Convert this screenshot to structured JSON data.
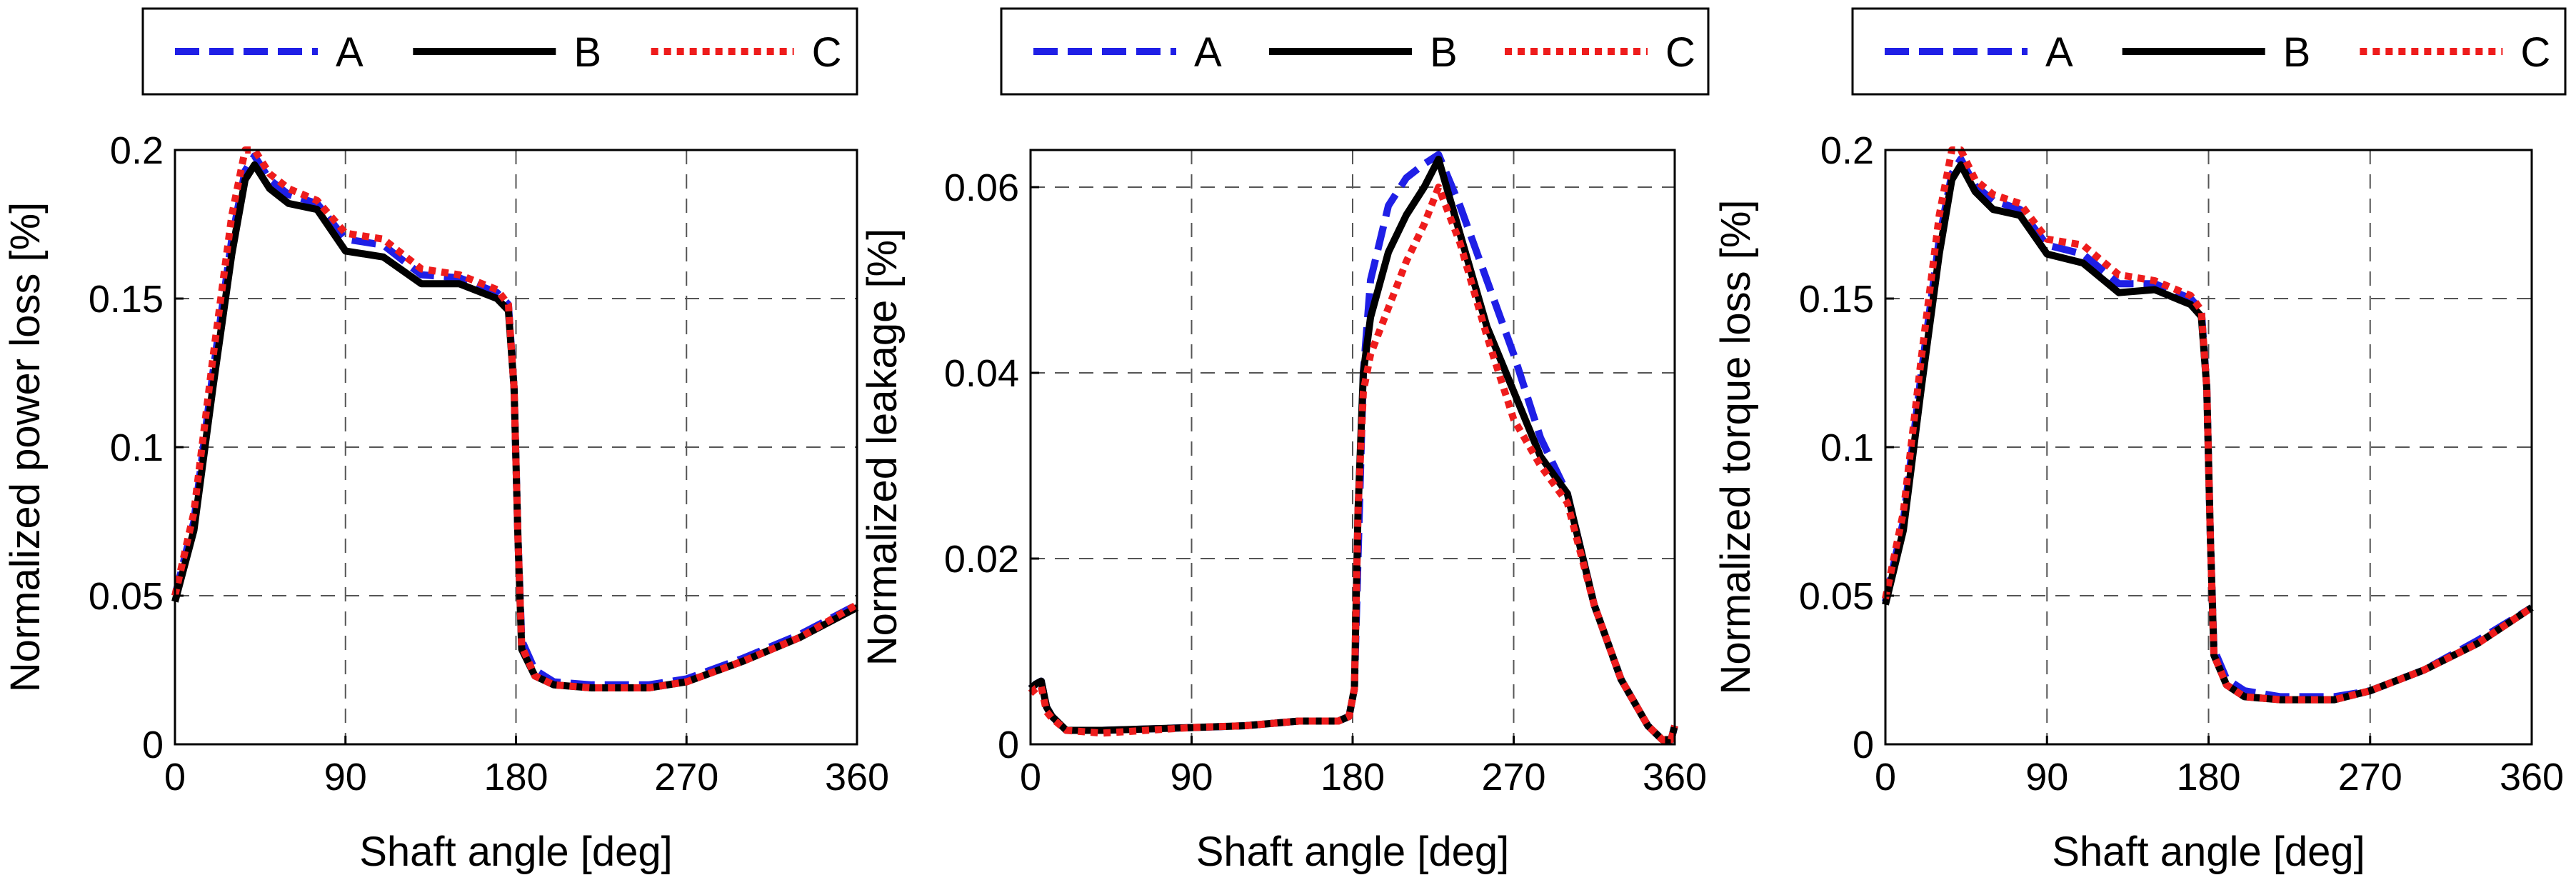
{
  "colors": {
    "A": "#1f1fe6",
    "B": "#000000",
    "C": "#ee1c1c",
    "grid": "#555555"
  },
  "chart_data": [
    {
      "type": "line",
      "xlabel": "Shaft angle [deg]",
      "ylabel": "Normalized power loss [%]",
      "xlim": [
        0,
        360
      ],
      "ylim": [
        0,
        0.2
      ],
      "xticks": [
        0,
        90,
        180,
        270,
        360
      ],
      "xtick_labels": [
        "0",
        "90",
        "180",
        "270",
        "360"
      ],
      "yticks": [
        0,
        0.05,
        0.1,
        0.15,
        0.2
      ],
      "ytick_labels": [
        "0",
        "0.05",
        "0.1",
        "0.15",
        "0.2"
      ],
      "grid": true,
      "legend": "top, outside",
      "series": [
        {
          "name": "A",
          "style": "dashed",
          "x": [
            0,
            10,
            20,
            30,
            37,
            42,
            50,
            60,
            75,
            90,
            110,
            130,
            150,
            170,
            176,
            179,
            181,
            183,
            190,
            200,
            220,
            250,
            270,
            300,
            330,
            360
          ],
          "y": [
            0.05,
            0.075,
            0.125,
            0.17,
            0.193,
            0.198,
            0.19,
            0.185,
            0.182,
            0.17,
            0.168,
            0.158,
            0.157,
            0.152,
            0.148,
            0.12,
            0.07,
            0.035,
            0.025,
            0.021,
            0.02,
            0.02,
            0.022,
            0.029,
            0.037,
            0.047
          ]
        },
        {
          "name": "B",
          "style": "solid",
          "x": [
            0,
            10,
            20,
            30,
            37,
            42,
            50,
            60,
            75,
            90,
            110,
            130,
            150,
            170,
            176,
            179,
            181,
            183,
            190,
            200,
            220,
            250,
            270,
            300,
            330,
            360
          ],
          "y": [
            0.048,
            0.072,
            0.12,
            0.165,
            0.19,
            0.195,
            0.187,
            0.182,
            0.18,
            0.166,
            0.164,
            0.155,
            0.155,
            0.15,
            0.146,
            0.12,
            0.07,
            0.032,
            0.023,
            0.02,
            0.019,
            0.019,
            0.021,
            0.028,
            0.036,
            0.046
          ]
        },
        {
          "name": "C",
          "style": "dotted",
          "x": [
            0,
            10,
            20,
            30,
            37,
            42,
            50,
            60,
            75,
            90,
            110,
            130,
            150,
            170,
            176,
            179,
            181,
            183,
            190,
            200,
            220,
            250,
            270,
            300,
            330,
            360
          ],
          "y": [
            0.05,
            0.078,
            0.13,
            0.178,
            0.2,
            0.2,
            0.192,
            0.187,
            0.183,
            0.172,
            0.17,
            0.16,
            0.158,
            0.153,
            0.148,
            0.12,
            0.07,
            0.033,
            0.023,
            0.02,
            0.019,
            0.019,
            0.021,
            0.028,
            0.036,
            0.047
          ]
        }
      ]
    },
    {
      "type": "line",
      "xlabel": "Shaft angle [deg]",
      "ylabel": "Normalized leakage [%]",
      "xlim": [
        0,
        360
      ],
      "ylim": [
        0,
        0.064
      ],
      "xticks": [
        0,
        90,
        180,
        270,
        360
      ],
      "xtick_labels": [
        "0",
        "90",
        "180",
        "270",
        "360"
      ],
      "yticks": [
        0,
        0.02,
        0.04,
        0.06
      ],
      "ytick_labels": [
        "0",
        "0.02",
        "0.04",
        "0.06"
      ],
      "grid": true,
      "legend": "top, outside",
      "series": [
        {
          "name": "A",
          "style": "dashed",
          "x": [
            0,
            3,
            6,
            9,
            12,
            20,
            40,
            90,
            120,
            150,
            172,
            178,
            181,
            183,
            186,
            190,
            200,
            210,
            220,
            228,
            240,
            255,
            270,
            285,
            300,
            315,
            330,
            345,
            353,
            358,
            360
          ],
          "y": [
            0.006,
            0.0065,
            0.0068,
            0.004,
            0.003,
            0.0015,
            0.0015,
            0.0018,
            0.002,
            0.0025,
            0.0025,
            0.003,
            0.006,
            0.02,
            0.04,
            0.05,
            0.058,
            0.061,
            0.0625,
            0.0635,
            0.058,
            0.05,
            0.042,
            0.033,
            0.027,
            0.015,
            0.007,
            0.002,
            0.0005,
            0.0005,
            0.002
          ]
        },
        {
          "name": "B",
          "style": "solid",
          "x": [
            0,
            3,
            6,
            9,
            12,
            20,
            40,
            90,
            120,
            150,
            172,
            178,
            181,
            183,
            186,
            190,
            200,
            210,
            220,
            228,
            240,
            255,
            270,
            285,
            300,
            315,
            330,
            345,
            353,
            358,
            360
          ],
          "y": [
            0.006,
            0.0065,
            0.0068,
            0.004,
            0.003,
            0.0015,
            0.0015,
            0.0018,
            0.002,
            0.0025,
            0.0025,
            0.003,
            0.006,
            0.025,
            0.04,
            0.046,
            0.053,
            0.057,
            0.06,
            0.063,
            0.055,
            0.045,
            0.038,
            0.031,
            0.027,
            0.015,
            0.007,
            0.002,
            0.0005,
            0.0005,
            0.002
          ]
        },
        {
          "name": "C",
          "style": "dotted",
          "x": [
            0,
            3,
            6,
            9,
            12,
            20,
            40,
            90,
            120,
            150,
            172,
            178,
            181,
            183,
            186,
            190,
            200,
            210,
            220,
            228,
            240,
            255,
            270,
            285,
            300,
            315,
            330,
            345,
            353,
            358,
            360
          ],
          "y": [
            0.0055,
            0.006,
            0.0062,
            0.0035,
            0.0028,
            0.0015,
            0.0012,
            0.0018,
            0.002,
            0.0025,
            0.0025,
            0.003,
            0.006,
            0.025,
            0.038,
            0.042,
            0.047,
            0.052,
            0.056,
            0.06,
            0.054,
            0.044,
            0.035,
            0.03,
            0.026,
            0.015,
            0.007,
            0.002,
            0.0005,
            0.0005,
            0.002
          ]
        }
      ]
    },
    {
      "type": "line",
      "xlabel": "Shaft angle [deg]",
      "ylabel": "Normalized torque loss [%]",
      "xlim": [
        0,
        360
      ],
      "ylim": [
        0,
        0.2
      ],
      "xticks": [
        0,
        90,
        180,
        270,
        360
      ],
      "xtick_labels": [
        "0",
        "90",
        "180",
        "270",
        "360"
      ],
      "yticks": [
        0,
        0.05,
        0.1,
        0.15,
        0.2
      ],
      "ytick_labels": [
        "0",
        "0.05",
        "0.1",
        "0.15",
        "0.2"
      ],
      "grid": true,
      "legend": "top, outside",
      "series": [
        {
          "name": "A",
          "style": "dashed",
          "x": [
            0,
            10,
            20,
            30,
            37,
            42,
            50,
            60,
            75,
            90,
            110,
            130,
            150,
            170,
            176,
            179,
            181,
            183,
            190,
            200,
            220,
            250,
            270,
            300,
            330,
            360
          ],
          "y": [
            0.048,
            0.075,
            0.125,
            0.17,
            0.192,
            0.197,
            0.188,
            0.183,
            0.18,
            0.168,
            0.165,
            0.155,
            0.155,
            0.15,
            0.146,
            0.12,
            0.07,
            0.032,
            0.022,
            0.018,
            0.016,
            0.016,
            0.018,
            0.025,
            0.035,
            0.046
          ]
        },
        {
          "name": "B",
          "style": "solid",
          "x": [
            0,
            10,
            20,
            30,
            37,
            42,
            50,
            60,
            75,
            90,
            110,
            130,
            150,
            170,
            176,
            179,
            181,
            183,
            190,
            200,
            220,
            250,
            270,
            300,
            330,
            360
          ],
          "y": [
            0.047,
            0.072,
            0.12,
            0.165,
            0.19,
            0.195,
            0.186,
            0.18,
            0.178,
            0.165,
            0.162,
            0.152,
            0.153,
            0.148,
            0.144,
            0.12,
            0.07,
            0.03,
            0.02,
            0.016,
            0.015,
            0.015,
            0.018,
            0.025,
            0.034,
            0.046
          ]
        },
        {
          "name": "C",
          "style": "dotted",
          "x": [
            0,
            10,
            20,
            30,
            37,
            42,
            50,
            60,
            75,
            90,
            110,
            130,
            150,
            170,
            176,
            179,
            181,
            183,
            190,
            200,
            220,
            250,
            270,
            300,
            330,
            360
          ],
          "y": [
            0.049,
            0.078,
            0.13,
            0.178,
            0.2,
            0.2,
            0.19,
            0.185,
            0.182,
            0.17,
            0.168,
            0.158,
            0.156,
            0.151,
            0.146,
            0.12,
            0.07,
            0.03,
            0.02,
            0.016,
            0.015,
            0.015,
            0.018,
            0.025,
            0.034,
            0.046
          ]
        }
      ]
    }
  ]
}
